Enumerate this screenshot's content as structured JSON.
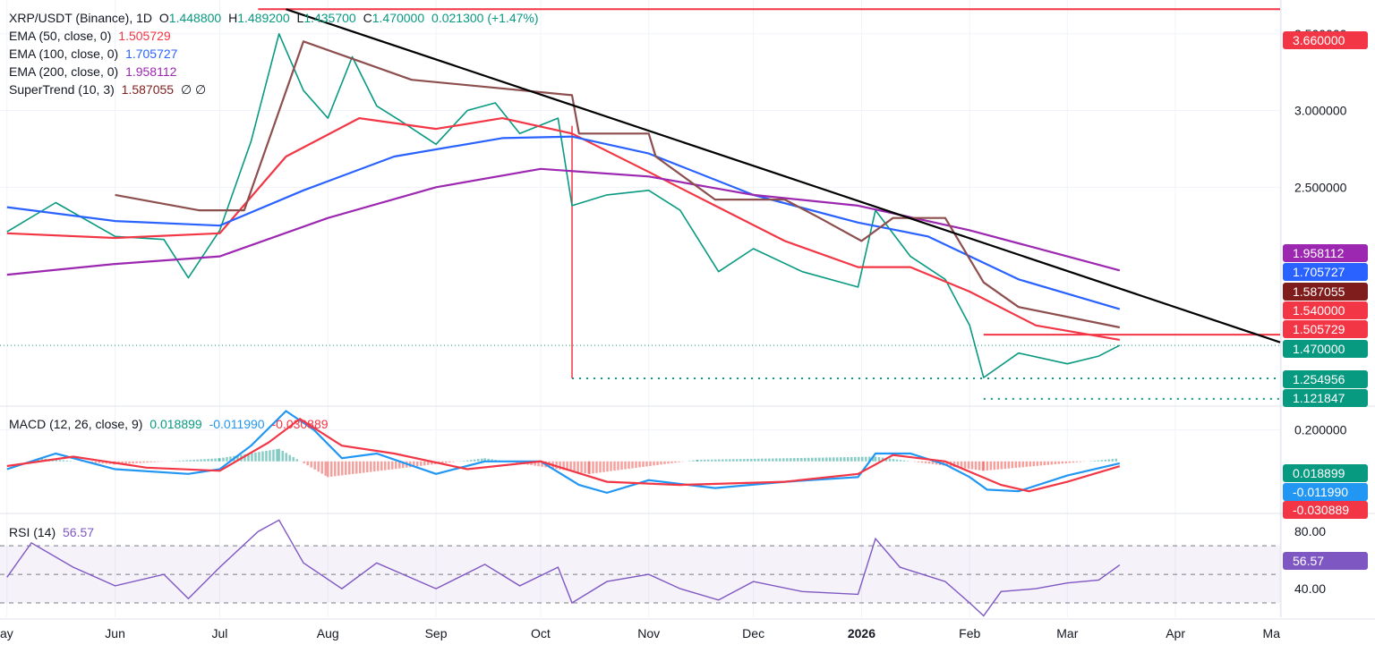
{
  "header": {
    "symbol": "XRP/USDT (Binance), 1D",
    "o_label": "O",
    "o_value": "1.448800",
    "h_label": "H",
    "h_value": "1.489200",
    "l_label": "L",
    "l_value": "1.435700",
    "c_label": "C",
    "c_value": "1.470000",
    "change": "0.021300 (+1.47%)"
  },
  "indicators": [
    {
      "label": "EMA (50, close, 0)",
      "value": "1.505729",
      "color": "#f23645"
    },
    {
      "label": "EMA (100, close, 0)",
      "value": "1.705727",
      "color": "#2962ff"
    },
    {
      "label": "EMA (200, close, 0)",
      "value": "1.958112",
      "color": "#9c27b0"
    },
    {
      "label": "SuperTrend (10, 3)",
      "value": "1.587055",
      "color": "#7f1d1d",
      "extra": "∅ ∅"
    }
  ],
  "macd_legend": {
    "label": "MACD (12, 26, close, 9)",
    "hist": "0.018899",
    "macd": "-0.011990",
    "signal": "-0.030889"
  },
  "rsi_legend": {
    "label": "RSI (14)",
    "value": "56.57"
  },
  "chart_data": [
    {
      "type": "line",
      "panel": "price",
      "title": "XRP/USDT (Binance), 1D",
      "x": [
        "May",
        "Jun",
        "Jul",
        "Aug",
        "Sep",
        "Oct",
        "Nov",
        "Dec",
        "2026",
        "Feb",
        "Mar",
        "Apr",
        "Mar"
      ],
      "ylim": [
        1.08,
        3.72
      ],
      "y_ticks": [
        3.5,
        3.0,
        2.5
      ],
      "y_tick_labels": [
        "3.500000",
        "3.000000",
        "2.500000"
      ],
      "last_close": 1.47,
      "series": [
        {
          "name": "Close",
          "color": "#089981",
          "points": [
            [
              "2025-05-01",
              2.21
            ],
            [
              "2025-05-15",
              2.4
            ],
            [
              "2025-06-01",
              2.18
            ],
            [
              "2025-06-15",
              2.16
            ],
            [
              "2025-06-22",
              1.91
            ],
            [
              "2025-07-01",
              2.22
            ],
            [
              "2025-07-10",
              2.8
            ],
            [
              "2025-07-18",
              3.5
            ],
            [
              "2025-07-25",
              3.13
            ],
            [
              "2025-08-01",
              2.95
            ],
            [
              "2025-08-08",
              3.35
            ],
            [
              "2025-08-15",
              3.03
            ],
            [
              "2025-08-22",
              2.93
            ],
            [
              "2025-09-01",
              2.78
            ],
            [
              "2025-09-10",
              3.0
            ],
            [
              "2025-09-18",
              3.05
            ],
            [
              "2025-09-25",
              2.85
            ],
            [
              "2025-10-06",
              2.95
            ],
            [
              "2025-10-10",
              2.38
            ],
            [
              "2025-10-20",
              2.45
            ],
            [
              "2025-11-01",
              2.48
            ],
            [
              "2025-11-10",
              2.35
            ],
            [
              "2025-11-21",
              1.95
            ],
            [
              "2025-12-01",
              2.1
            ],
            [
              "2025-12-15",
              1.95
            ],
            [
              "2025-12-31",
              1.85
            ],
            [
              "2026-01-05",
              2.35
            ],
            [
              "2026-01-15",
              2.05
            ],
            [
              "2026-01-25",
              1.9
            ],
            [
              "2026-02-01",
              1.6
            ],
            [
              "2026-02-05",
              1.26
            ],
            [
              "2026-02-15",
              1.42
            ],
            [
              "2026-03-01",
              1.35
            ],
            [
              "2026-03-10",
              1.4
            ],
            [
              "2026-03-16",
              1.47
            ]
          ]
        },
        {
          "name": "EMA (50, close, 0)",
          "color": "#f23645",
          "points": [
            [
              "2025-05-01",
              2.2
            ],
            [
              "2025-06-01",
              2.17
            ],
            [
              "2025-07-01",
              2.2
            ],
            [
              "2025-07-20",
              2.7
            ],
            [
              "2025-08-10",
              2.95
            ],
            [
              "2025-09-01",
              2.88
            ],
            [
              "2025-09-20",
              2.95
            ],
            [
              "2025-10-10",
              2.85
            ],
            [
              "2025-11-01",
              2.6
            ],
            [
              "2025-11-20",
              2.38
            ],
            [
              "2025-12-10",
              2.15
            ],
            [
              "2025-12-31",
              1.98
            ],
            [
              "2026-01-15",
              1.98
            ],
            [
              "2026-02-01",
              1.82
            ],
            [
              "2026-02-20",
              1.6
            ],
            [
              "2026-03-16",
              1.506
            ]
          ]
        },
        {
          "name": "EMA (100, close, 0)",
          "color": "#2962ff",
          "points": [
            [
              "2025-05-01",
              2.37
            ],
            [
              "2025-06-01",
              2.28
            ],
            [
              "2025-07-01",
              2.25
            ],
            [
              "2025-07-25",
              2.48
            ],
            [
              "2025-08-20",
              2.7
            ],
            [
              "2025-09-20",
              2.82
            ],
            [
              "2025-10-10",
              2.83
            ],
            [
              "2025-11-01",
              2.72
            ],
            [
              "2025-12-01",
              2.45
            ],
            [
              "2025-12-31",
              2.27
            ],
            [
              "2026-01-20",
              2.18
            ],
            [
              "2026-02-15",
              1.9
            ],
            [
              "2026-03-16",
              1.706
            ]
          ]
        },
        {
          "name": "EMA (200, close, 0)",
          "color": "#9c27b0",
          "points": [
            [
              "2025-05-01",
              1.93
            ],
            [
              "2025-06-01",
              2.0
            ],
            [
              "2025-07-01",
              2.05
            ],
            [
              "2025-08-01",
              2.3
            ],
            [
              "2025-09-01",
              2.5
            ],
            [
              "2025-10-01",
              2.62
            ],
            [
              "2025-11-01",
              2.57
            ],
            [
              "2025-12-01",
              2.45
            ],
            [
              "2025-12-31",
              2.38
            ],
            [
              "2026-02-01",
              2.22
            ],
            [
              "2026-03-16",
              1.958
            ]
          ]
        },
        {
          "name": "SuperTrend (10, 3)",
          "color": "#8d4e4e",
          "points": [
            [
              "2025-06-01",
              2.45
            ],
            [
              "2025-06-25",
              2.35
            ],
            [
              "2025-07-08",
              2.35
            ],
            [
              "2025-07-25",
              3.45
            ],
            [
              "2025-08-25",
              3.2
            ],
            [
              "2025-10-10",
              3.1
            ],
            [
              "2025-10-12",
              2.85
            ],
            [
              "2025-11-01",
              2.85
            ],
            [
              "2025-11-03",
              2.7
            ],
            [
              "2025-11-20",
              2.42
            ],
            [
              "2025-12-10",
              2.42
            ],
            [
              "2025-12-20",
              2.3
            ],
            [
              "2026-01-01",
              2.15
            ],
            [
              "2026-01-10",
              2.3
            ],
            [
              "2026-01-25",
              2.3
            ],
            [
              "2026-02-05",
              1.88
            ],
            [
              "2026-02-15",
              1.72
            ],
            [
              "2026-03-16",
              1.587
            ]
          ]
        }
      ],
      "price_tags": [
        {
          "value": "3.660000",
          "color": "#f23645"
        },
        {
          "value": "1.958112",
          "color": "#9c27b0"
        },
        {
          "value": "1.705727",
          "color": "#2962ff"
        },
        {
          "value": "1.587055",
          "color": "#7f1d1d"
        },
        {
          "value": "1.540000",
          "color": "#f23645"
        },
        {
          "value": "1.505729",
          "color": "#f23645"
        },
        {
          "value": "1.470000",
          "color": "#089981"
        },
        {
          "value": "1.254956",
          "color": "#089981"
        },
        {
          "value": "1.121847",
          "color": "#089981"
        }
      ]
    },
    {
      "type": "line",
      "panel": "macd",
      "ylim": [
        -0.32,
        0.34
      ],
      "y_ticks": [
        0.2
      ],
      "y_tick_labels": [
        "0.200000"
      ],
      "series": [
        {
          "name": "MACD",
          "color": "#2196f3",
          "points": [
            [
              "2025-05-01",
              -0.05
            ],
            [
              "2025-05-15",
              0.05
            ],
            [
              "2025-06-01",
              -0.05
            ],
            [
              "2025-06-22",
              -0.08
            ],
            [
              "2025-07-01",
              -0.05
            ],
            [
              "2025-07-10",
              0.1
            ],
            [
              "2025-07-20",
              0.32
            ],
            [
              "2025-07-28",
              0.2
            ],
            [
              "2025-08-05",
              0.02
            ],
            [
              "2025-08-15",
              0.05
            ],
            [
              "2025-09-01",
              -0.08
            ],
            [
              "2025-09-15",
              0.0
            ],
            [
              "2025-10-01",
              0.0
            ],
            [
              "2025-10-12",
              -0.15
            ],
            [
              "2025-10-20",
              -0.2
            ],
            [
              "2025-11-01",
              -0.12
            ],
            [
              "2025-11-20",
              -0.17
            ],
            [
              "2025-12-10",
              -0.13
            ],
            [
              "2025-12-31",
              -0.1
            ],
            [
              "2026-01-05",
              0.05
            ],
            [
              "2026-01-15",
              0.05
            ],
            [
              "2026-01-25",
              -0.02
            ],
            [
              "2026-02-01",
              -0.1
            ],
            [
              "2026-02-06",
              -0.18
            ],
            [
              "2026-02-15",
              -0.19
            ],
            [
              "2026-03-01",
              -0.09
            ],
            [
              "2026-03-16",
              -0.012
            ]
          ]
        },
        {
          "name": "Signal",
          "color": "#f23645",
          "points": [
            [
              "2025-05-01",
              -0.03
            ],
            [
              "2025-05-20",
              0.03
            ],
            [
              "2025-06-10",
              -0.04
            ],
            [
              "2025-07-01",
              -0.06
            ],
            [
              "2025-07-15",
              0.12
            ],
            [
              "2025-07-24",
              0.27
            ],
            [
              "2025-08-05",
              0.1
            ],
            [
              "2025-08-20",
              0.05
            ],
            [
              "2025-09-10",
              -0.05
            ],
            [
              "2025-10-01",
              0.0
            ],
            [
              "2025-10-20",
              -0.13
            ],
            [
              "2025-11-10",
              -0.15
            ],
            [
              "2025-12-10",
              -0.13
            ],
            [
              "2025-12-31",
              -0.08
            ],
            [
              "2026-01-10",
              0.04
            ],
            [
              "2026-01-25",
              0.0
            ],
            [
              "2026-02-10",
              -0.15
            ],
            [
              "2026-02-18",
              -0.19
            ],
            [
              "2026-03-01",
              -0.13
            ],
            [
              "2026-03-16",
              -0.031
            ]
          ]
        },
        {
          "name": "Histogram",
          "color": "#26a69a",
          "points": [
            [
              "2025-05-10",
              0.02
            ],
            [
              "2025-06-01",
              -0.02
            ],
            [
              "2025-07-01",
              0.02
            ],
            [
              "2025-07-18",
              0.08
            ],
            [
              "2025-08-01",
              -0.1
            ],
            [
              "2025-09-15",
              0.02
            ],
            [
              "2025-10-15",
              -0.08
            ],
            [
              "2025-11-15",
              0.01
            ],
            [
              "2026-01-05",
              0.03
            ],
            [
              "2026-02-05",
              -0.06
            ],
            [
              "2026-03-16",
              0.019
            ]
          ]
        }
      ],
      "price_tags": [
        {
          "value": "0.018899",
          "color": "#089981"
        },
        {
          "value": "-0.011990",
          "color": "#2196f3"
        },
        {
          "value": "-0.030889",
          "color": "#f23645"
        }
      ]
    },
    {
      "type": "line",
      "panel": "rsi",
      "ylim": [
        20,
        92
      ],
      "y_ticks": [
        80,
        40
      ],
      "y_tick_labels": [
        "80.00",
        "40.00"
      ],
      "bands": [
        70,
        50,
        30
      ],
      "series": [
        {
          "name": "RSI (14)",
          "color": "#7e57c2",
          "points": [
            [
              "2025-05-01",
              48
            ],
            [
              "2025-05-08",
              72
            ],
            [
              "2025-05-20",
              55
            ],
            [
              "2025-06-01",
              42
            ],
            [
              "2025-06-15",
              50
            ],
            [
              "2025-06-22",
              33
            ],
            [
              "2025-07-01",
              55
            ],
            [
              "2025-07-12",
              80
            ],
            [
              "2025-07-18",
              88
            ],
            [
              "2025-07-25",
              58
            ],
            [
              "2025-08-05",
              40
            ],
            [
              "2025-08-15",
              58
            ],
            [
              "2025-09-01",
              40
            ],
            [
              "2025-09-15",
              57
            ],
            [
              "2025-09-25",
              42
            ],
            [
              "2025-10-06",
              55
            ],
            [
              "2025-10-10",
              30
            ],
            [
              "2025-10-20",
              45
            ],
            [
              "2025-11-01",
              50
            ],
            [
              "2025-11-10",
              40
            ],
            [
              "2025-11-21",
              32
            ],
            [
              "2025-12-01",
              45
            ],
            [
              "2025-12-15",
              38
            ],
            [
              "2025-12-31",
              36
            ],
            [
              "2026-01-05",
              75
            ],
            [
              "2026-01-12",
              55
            ],
            [
              "2026-01-25",
              45
            ],
            [
              "2026-02-01",
              30
            ],
            [
              "2026-02-05",
              21
            ],
            [
              "2026-02-10",
              38
            ],
            [
              "2026-02-20",
              40
            ],
            [
              "2026-03-01",
              44
            ],
            [
              "2026-03-10",
              46
            ],
            [
              "2026-03-16",
              56.57
            ]
          ]
        }
      ],
      "price_tags": [
        {
          "value": "56.57",
          "color": "#7e57c2"
        }
      ]
    }
  ],
  "x_axis_labels": [
    "ay",
    "Jun",
    "Jul",
    "Aug",
    "Sep",
    "Oct",
    "Nov",
    "Dec",
    "2026",
    "Feb",
    "Mar",
    "Apr",
    "Ma"
  ]
}
